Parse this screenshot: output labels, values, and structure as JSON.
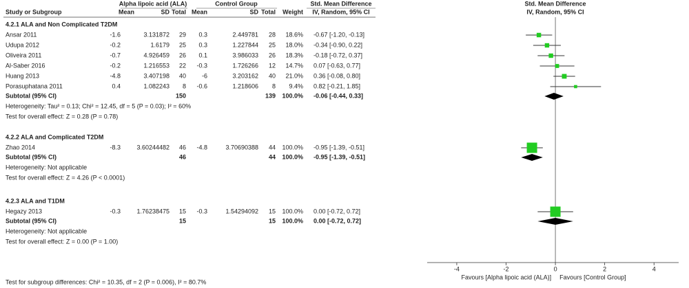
{
  "chart_data": {
    "type": "forest",
    "headers": {
      "group1": "Alpha lipoic acid (ALA)",
      "group2": "Control Group",
      "effect_table": "Std. Mean Difference",
      "effect_plot": "Std. Mean Difference",
      "study": "Study or Subgroup",
      "mean1": "Mean",
      "sd1": "SD",
      "total1": "Total",
      "mean2": "Mean",
      "sd2": "SD",
      "total2": "Total",
      "weight": "Weight",
      "method_table": "IV, Random, 95% CI",
      "method_plot": "IV, Random, 95% CI"
    },
    "groups": [
      {
        "title": "4.2.1 ALA and Non Complicated T2DM",
        "studies": [
          {
            "name": "Ansar 2011",
            "mean1": -1.6,
            "sd1": 3.131872,
            "total1": 29,
            "mean2": 0.3,
            "sd2": 2.449781,
            "total2": 28,
            "weight": 18.6,
            "weight_label": "18.6%",
            "ci_label": "-0.67 [-1.20, -0.13]",
            "smd": -0.67,
            "lo": -1.2,
            "hi": -0.13
          },
          {
            "name": "Udupa 2012",
            "mean1": -0.2,
            "sd1": 1.6179,
            "total1": 25,
            "mean2": 0.3,
            "sd2": 1.227844,
            "total2": 25,
            "weight": 18,
            "weight_label": "18.0%",
            "ci_label": "-0.34 [-0.90, 0.22]",
            "smd": -0.34,
            "lo": -0.9,
            "hi": 0.22
          },
          {
            "name": "Oliveira 2011",
            "mean1": -0.7,
            "sd1": 4.926459,
            "total1": 26,
            "mean2": 0.1,
            "sd2": 3.986033,
            "total2": 26,
            "weight": 18.3,
            "weight_label": "18.3%",
            "ci_label": "-0.18 [-0.72, 0.37]",
            "smd": -0.18,
            "lo": -0.72,
            "hi": 0.37
          },
          {
            "name": "Al-Saber 2016",
            "mean1": -0.2,
            "sd1": 1.216553,
            "total1": 22,
            "mean2": -0.3,
            "sd2": 1.726266,
            "total2": 12,
            "weight": 14.7,
            "weight_label": "14.7%",
            "ci_label": "0.07 [-0.63, 0.77]",
            "smd": 0.07,
            "lo": -0.63,
            "hi": 0.77
          },
          {
            "name": "Huang 2013",
            "mean1": -4.8,
            "sd1": 3.407198,
            "total1": 40,
            "mean2": -6,
            "sd2": 3.203162,
            "total2": 40,
            "weight": 21,
            "weight_label": "21.0%",
            "ci_label": "0.36 [-0.08, 0.80]",
            "smd": 0.36,
            "lo": -0.08,
            "hi": 0.8
          },
          {
            "name": "Porasuphatana 2011",
            "mean1": 0.4,
            "sd1": 1.082243,
            "total1": 8,
            "mean2": -0.6,
            "sd2": 1.218606,
            "total2": 8,
            "weight": 9.4,
            "weight_label": "9.4%",
            "ci_label": "0.82 [-0.21, 1.85]",
            "smd": 0.82,
            "lo": -0.21,
            "hi": 1.85
          }
        ],
        "subtotal": {
          "name": "Subtotal (95% CI)",
          "total1": 150,
          "total2": 139,
          "weight_label": "100.0%",
          "ci_label": "-0.06 [-0.44, 0.33]",
          "smd": -0.06,
          "lo": -0.44,
          "hi": 0.33
        },
        "heterogeneity": "Heterogeneity: Tau² = 0.13; Chi² = 12.45, df = 5 (P = 0.03); I² = 60%",
        "overall": "Test for overall effect: Z = 0.28 (P = 0.78)"
      },
      {
        "title": "4.2.2 ALA and Complicated T2DM",
        "studies": [
          {
            "name": "Zhao 2014",
            "mean1": -8.3,
            "sd1": 3.60244482,
            "total1": 46,
            "mean2": -4.8,
            "sd2": 3.70690388,
            "total2": 44,
            "weight": 100,
            "weight_label": "100.0%",
            "ci_label": "-0.95 [-1.39, -0.51]",
            "smd": -0.95,
            "lo": -1.39,
            "hi": -0.51
          }
        ],
        "subtotal": {
          "name": "Subtotal (95% CI)",
          "total1": 46,
          "total2": 44,
          "weight_label": "100.0%",
          "ci_label": "-0.95 [-1.39, -0.51]",
          "smd": -0.95,
          "lo": -1.39,
          "hi": -0.51
        },
        "heterogeneity": "Heterogeneity: Not applicable",
        "overall": "Test for overall effect: Z = 4.26 (P < 0.0001)"
      },
      {
        "title": "4.2.3 ALA and T1DM",
        "studies": [
          {
            "name": "Hegazy 2013",
            "mean1": -0.3,
            "sd1": 1.76238475,
            "total1": 15,
            "mean2": -0.3,
            "sd2": 1.54294092,
            "total2": 15,
            "weight": 100,
            "weight_label": "100.0%",
            "ci_label": "0.00 [-0.72, 0.72]",
            "smd": 0,
            "lo": -0.72,
            "hi": 0.72
          }
        ],
        "subtotal": {
          "name": "Subtotal (95% CI)",
          "total1": 15,
          "total2": 15,
          "weight_label": "100.0%",
          "ci_label": "0.00 [-0.72, 0.72]",
          "smd": 0,
          "lo": -0.72,
          "hi": 0.72
        },
        "heterogeneity": "Heterogeneity: Not applicable",
        "overall": "Test for overall effect: Z = 0.00 (P = 1.00)"
      }
    ],
    "xlim": [
      -5.2,
      5
    ],
    "xticks": [
      -4,
      -2,
      0,
      2,
      4
    ],
    "favours_left": "Favours [Alpha lipoic acid (ALA)]",
    "favours_right": "Favours [Control Group]",
    "subgroup_test": "Test for subgroup differences: Chi² = 10.35, df = 2 (P = 0.006), I² = 80.7%",
    "marker_color": "#22cc22"
  }
}
